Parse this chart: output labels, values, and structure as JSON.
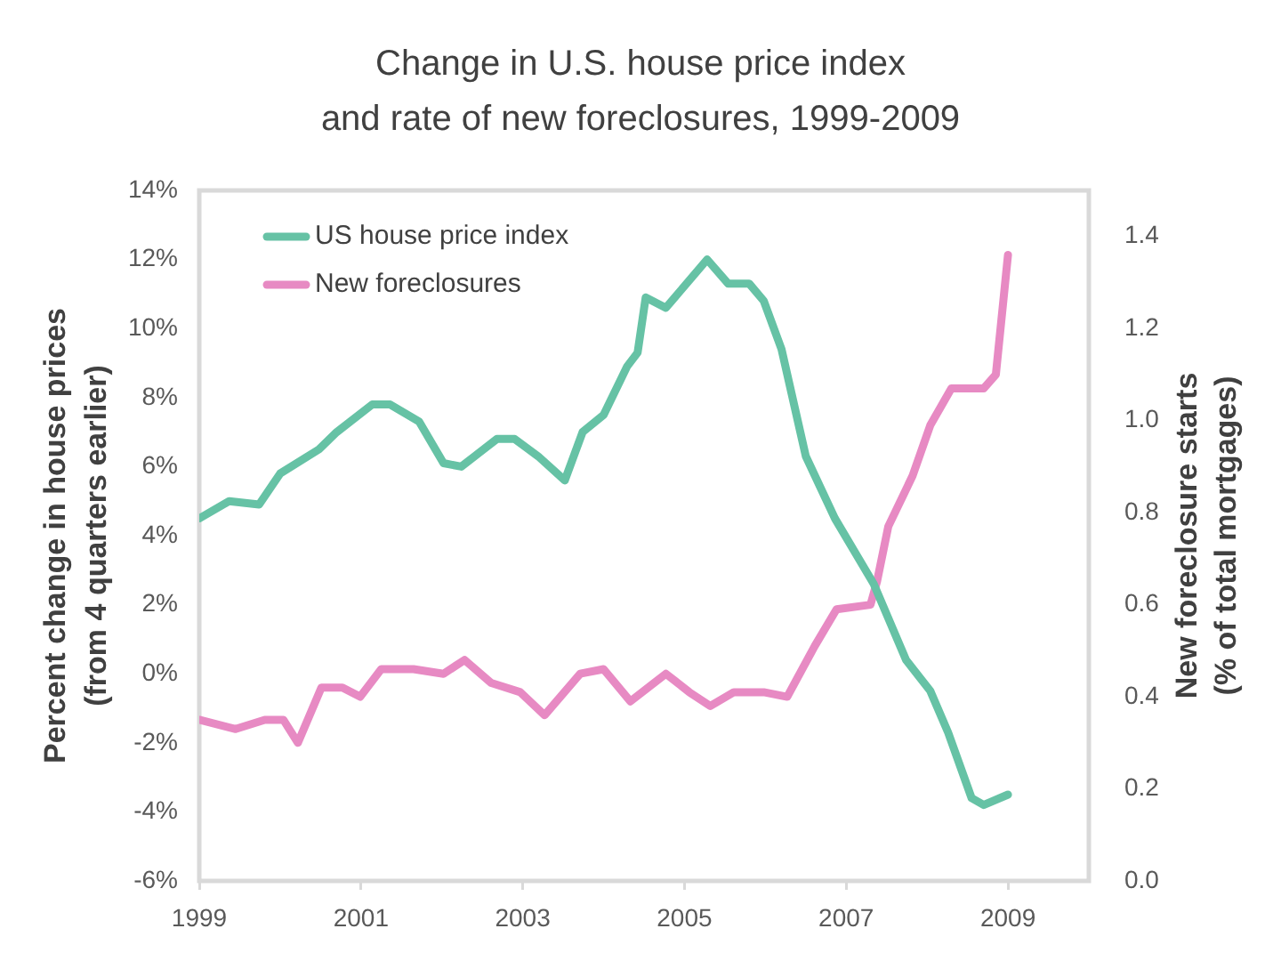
{
  "chart_data": {
    "type": "line",
    "title": "Change in U.S. house price index\nand rate of new foreclosures, 1999-2009",
    "ylabel": "Percent change in house prices\n(from 4 quarters earlier)",
    "y2label": "New foreclosure starts\n(% of total mortgages)",
    "xlim": [
      1999,
      2010
    ],
    "xticks": [
      1999,
      2001,
      2003,
      2005,
      2007,
      2009
    ],
    "ylim": [
      -6,
      14
    ],
    "yticks": [
      {
        "value": -6,
        "label": "-6%"
      },
      {
        "value": -4,
        "label": "-4%"
      },
      {
        "value": -2,
        "label": "-2%"
      },
      {
        "value": 0,
        "label": "0%"
      },
      {
        "value": 2,
        "label": "2%"
      },
      {
        "value": 4,
        "label": "4%"
      },
      {
        "value": 6,
        "label": "6%"
      },
      {
        "value": 8,
        "label": "8%"
      },
      {
        "value": 10,
        "label": "10%"
      },
      {
        "value": 12,
        "label": "12%"
      },
      {
        "value": 14,
        "label": "14%"
      }
    ],
    "y2lim": [
      0,
      1.5
    ],
    "y2ticks": [
      {
        "value": 0,
        "label": "0.0"
      },
      0.2,
      0.4,
      0.6,
      0.8,
      {
        "value": 1,
        "label": "1.0"
      },
      1.2,
      1.4
    ],
    "legend": "top left",
    "series": [
      {
        "name": "US house price index",
        "color": "#66c2a5",
        "axis": "y",
        "x": [
          1999.0,
          1999.37,
          1999.74,
          2000.0,
          2000.48,
          2000.7,
          2001.14,
          2001.36,
          2001.72,
          2002.02,
          2002.24,
          2002.68,
          2002.9,
          2003.19,
          2003.52,
          2003.74,
          2004.0,
          2004.29,
          2004.42,
          2004.52,
          2004.77,
          2005.28,
          2005.54,
          2005.8,
          2005.98,
          2006.2,
          2006.5,
          2006.86,
          2007.34,
          2007.74,
          2008.04,
          2008.26,
          2008.55,
          2008.7,
          2009.0
        ],
        "values": [
          4.5,
          5.0,
          4.9,
          5.8,
          6.5,
          7.0,
          7.8,
          7.8,
          7.3,
          6.1,
          6.0,
          6.8,
          6.8,
          6.3,
          5.6,
          7.0,
          7.5,
          8.9,
          9.3,
          10.9,
          10.6,
          12.0,
          11.3,
          11.3,
          10.8,
          9.4,
          6.3,
          4.5,
          2.6,
          0.4,
          -0.5,
          -1.7,
          -3.6,
          -3.8,
          -3.5
        ]
      },
      {
        "name": "New foreclosures",
        "color": "#e78ac3",
        "axis": "y2",
        "x": [
          1999.0,
          1999.45,
          1999.81,
          2000.04,
          2000.22,
          2000.51,
          2000.77,
          2000.99,
          2001.25,
          2001.65,
          2002.02,
          2002.28,
          2002.61,
          2002.97,
          2003.27,
          2003.71,
          2004.0,
          2004.33,
          2004.77,
          2005.06,
          2005.32,
          2005.61,
          2005.98,
          2006.27,
          2006.61,
          2006.88,
          2007.3,
          2007.38,
          2007.52,
          2007.82,
          2008.04,
          2008.3,
          2008.7,
          2008.85,
          2009.0
        ],
        "values": [
          0.35,
          0.33,
          0.35,
          0.35,
          0.3,
          0.42,
          0.42,
          0.4,
          0.46,
          0.46,
          0.45,
          0.48,
          0.43,
          0.41,
          0.36,
          0.45,
          0.46,
          0.39,
          0.45,
          0.41,
          0.38,
          0.41,
          0.41,
          0.4,
          0.51,
          0.59,
          0.6,
          0.65,
          0.77,
          0.88,
          0.99,
          1.07,
          1.07,
          1.1,
          1.36
        ]
      }
    ]
  }
}
